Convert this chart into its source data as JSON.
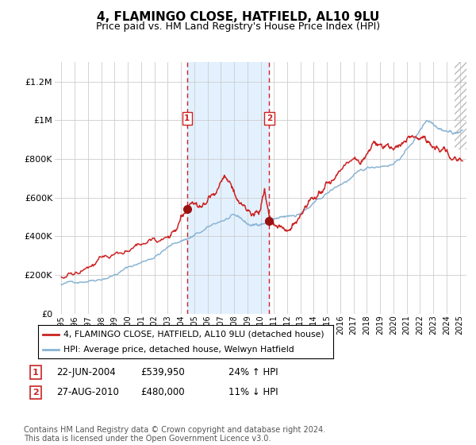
{
  "title": "4, FLAMINGO CLOSE, HATFIELD, AL10 9LU",
  "subtitle": "Price paid vs. HM Land Registry's House Price Index (HPI)",
  "title_fontsize": 11,
  "subtitle_fontsize": 9,
  "xlim": [
    1994.5,
    2025.5
  ],
  "ylim": [
    0,
    1300000
  ],
  "yticks": [
    0,
    200000,
    400000,
    600000,
    800000,
    1000000,
    1200000
  ],
  "ytick_labels": [
    "£0",
    "£200K",
    "£400K",
    "£600K",
    "£800K",
    "£1M",
    "£1.2M"
  ],
  "xtick_years": [
    1995,
    1996,
    1997,
    1998,
    1999,
    2000,
    2001,
    2002,
    2003,
    2004,
    2005,
    2006,
    2007,
    2008,
    2009,
    2010,
    2011,
    2012,
    2013,
    2014,
    2015,
    2016,
    2017,
    2018,
    2019,
    2020,
    2021,
    2022,
    2023,
    2024,
    2025
  ],
  "hpi_color": "#8ab4d4",
  "price_color": "#cc2222",
  "marker_color": "#991111",
  "shade_color": "#ddeeff",
  "vline_color": "#cc2222",
  "grid_color": "#cccccc",
  "bg_color": "#ffffff",
  "legend_label_red": "4, FLAMINGO CLOSE, HATFIELD, AL10 9LU (detached house)",
  "legend_label_blue": "HPI: Average price, detached house, Welwyn Hatfield",
  "sale1_year": 2004.47,
  "sale1_price": 539950,
  "sale2_year": 2010.65,
  "sale2_price": 480000,
  "footnote": "Contains HM Land Registry data © Crown copyright and database right 2024.\nThis data is licensed under the Open Government Licence v3.0.",
  "footnote_fontsize": 7
}
